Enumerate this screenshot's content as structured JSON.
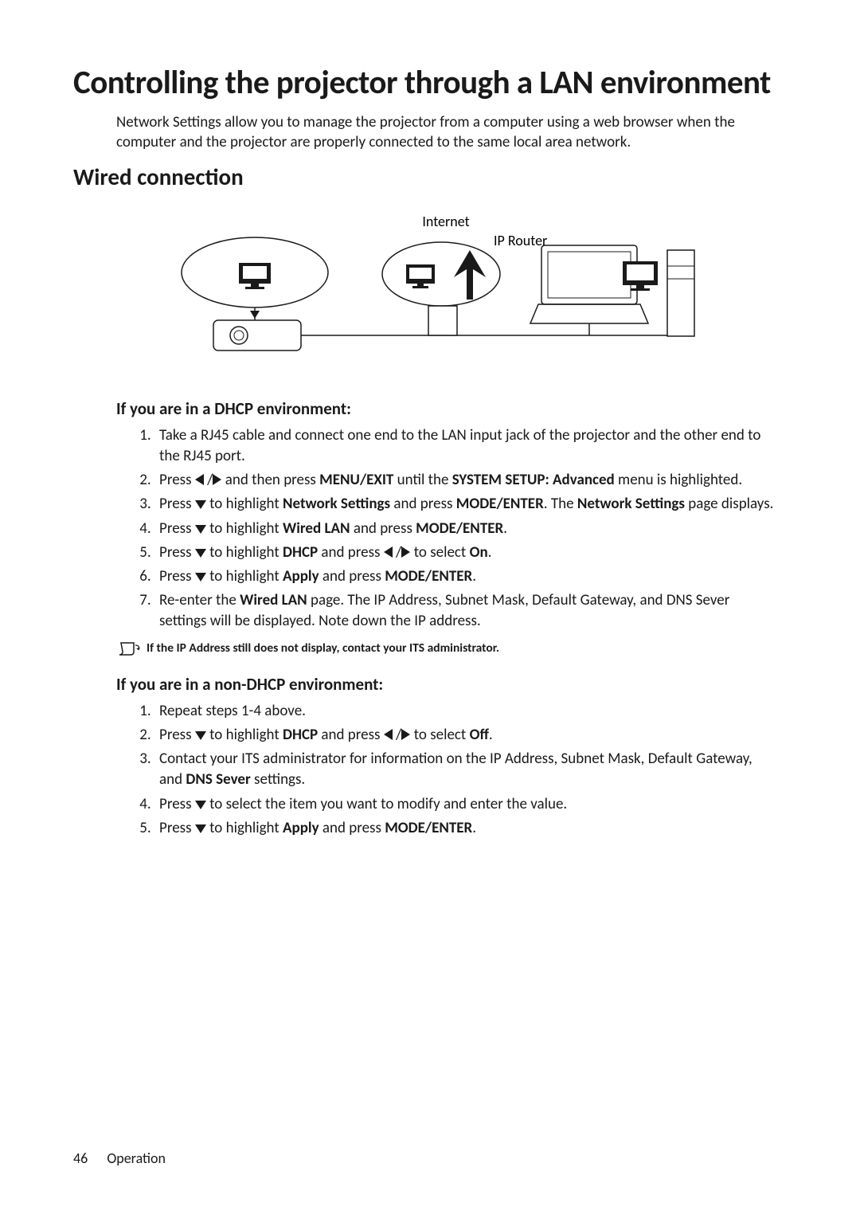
{
  "title": "Controlling the projector through a LAN environment",
  "intro": "Network Settings allow you to manage the projector from a computer using a web browser when the computer and the projector are properly connected to the same local area network.",
  "section_title": "Wired connection",
  "diagram": {
    "label_internet": "Internet",
    "label_ip_router": "IP Router"
  },
  "dhcp": {
    "heading": "If you are in a DHCP environment:",
    "steps": [
      {
        "pre": "Take a RJ45 cable and connect one end to the LAN input jack of the projector and the other end to the RJ45 port."
      },
      {
        "pre": "Press ",
        "b1": "MENU/EXIT",
        "mid1": " and then press ",
        "arrows": "lr",
        "mid2": " until the ",
        "b2": "SYSTEM SETUP: Advanced",
        "post": " menu is highlighted."
      },
      {
        "pre": "Press ",
        "arrows": "d",
        "mid1": " to highlight ",
        "b1": "Network Settings",
        "mid2": " and press ",
        "b2": "MODE/ENTER",
        "post2": ". The ",
        "b3": "Network Settings",
        "post3": " page displays."
      },
      {
        "pre": "Press ",
        "arrows": "d",
        "mid1": " to highlight ",
        "b1": "Wired LAN",
        "mid2": " and press ",
        "b2": "MODE/ENTER",
        "post": "."
      },
      {
        "pre": "Press ",
        "arrows": "d",
        "mid1": " to highlight ",
        "b1": "DHCP",
        "mid2": " and press ",
        "arrows2": "lr",
        "mid3": " to select ",
        "b2": "On",
        "post": "."
      },
      {
        "pre": "Press ",
        "arrows": "d",
        "mid1": " to highlight ",
        "b1": "Apply",
        "mid2": " and press ",
        "b2": "MODE/ENTER",
        "post": "."
      },
      {
        "pre": "Re-enter the ",
        "b1": "Wired LAN",
        "mid1": " page. The IP Address, Subnet Mask, Default Gateway, and DNS Sever settings will be displayed. Note down the IP address."
      }
    ]
  },
  "note": "If the IP Address still does not display, contact your ITS administrator.",
  "nondhcp": {
    "heading": "If you are in a non-DHCP environment:",
    "steps": [
      {
        "pre": "Repeat steps 1-4 above."
      },
      {
        "pre": "Press ",
        "arrows": "d",
        "mid1": " to highlight ",
        "b1": "DHCP",
        "mid2": " and press ",
        "arrows2": "lr",
        "mid3": " to select ",
        "b2": "Off",
        "post": "."
      },
      {
        "pre": "Contact your ITS administrator for information on the IP Address, Subnet Mask, Default Gateway, and ",
        "b1": "DNS Sever",
        "post": " settings."
      },
      {
        "pre": "Press ",
        "arrows": "d",
        "mid1": " to select the item you want to modify and enter the value."
      },
      {
        "pre": "Press ",
        "arrows": "d",
        "mid1": " to highlight ",
        "b1": "Apply",
        "mid2": " and press ",
        "b2": "MODE/ENTER",
        "post": "."
      }
    ]
  },
  "footer": {
    "page_number": "46",
    "section": "Operation"
  },
  "colors": {
    "text": "#1a1a1a",
    "background": "#ffffff",
    "stroke": "#1a1a1a"
  }
}
